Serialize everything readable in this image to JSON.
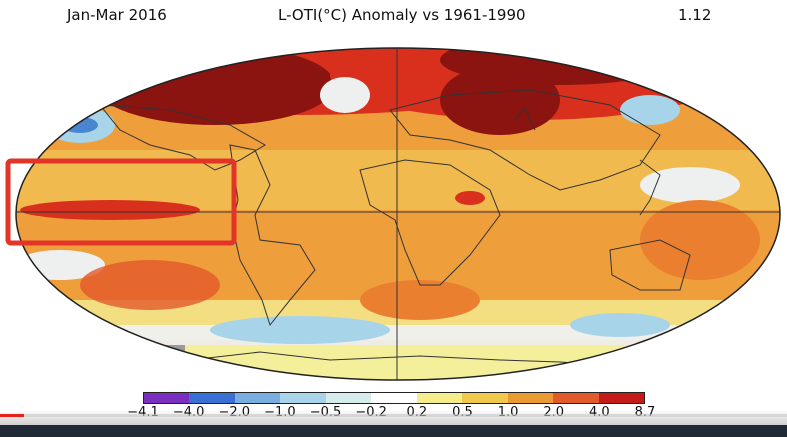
{
  "header": {
    "period": "Jan-Mar 2016",
    "title": "L-OTI(°C) Anomaly vs 1961-1990",
    "global_value": "1.12"
  },
  "legend": {
    "ticks": [
      "−4.1",
      "−4.0",
      "−2.0",
      "−1.0",
      "−0.5",
      "−0.2",
      "0.2",
      "0.5",
      "1.0",
      "2.0",
      "4.0",
      "8.7"
    ],
    "colors": [
      "#7b2fbf",
      "#3a6fd4",
      "#7aaee0",
      "#a9d3e8",
      "#d6ecec",
      "#ffffff",
      "#f5ec8a",
      "#f0c94a",
      "#eb9a33",
      "#e2592a",
      "#c41a1a",
      "#7a0f0f"
    ]
  },
  "highlight": {
    "color": "#e23528",
    "label": "Eastern Pacific warm anomaly highlight"
  },
  "video": {
    "progress_fraction": 0.03,
    "progress_color": "#e62117"
  }
}
